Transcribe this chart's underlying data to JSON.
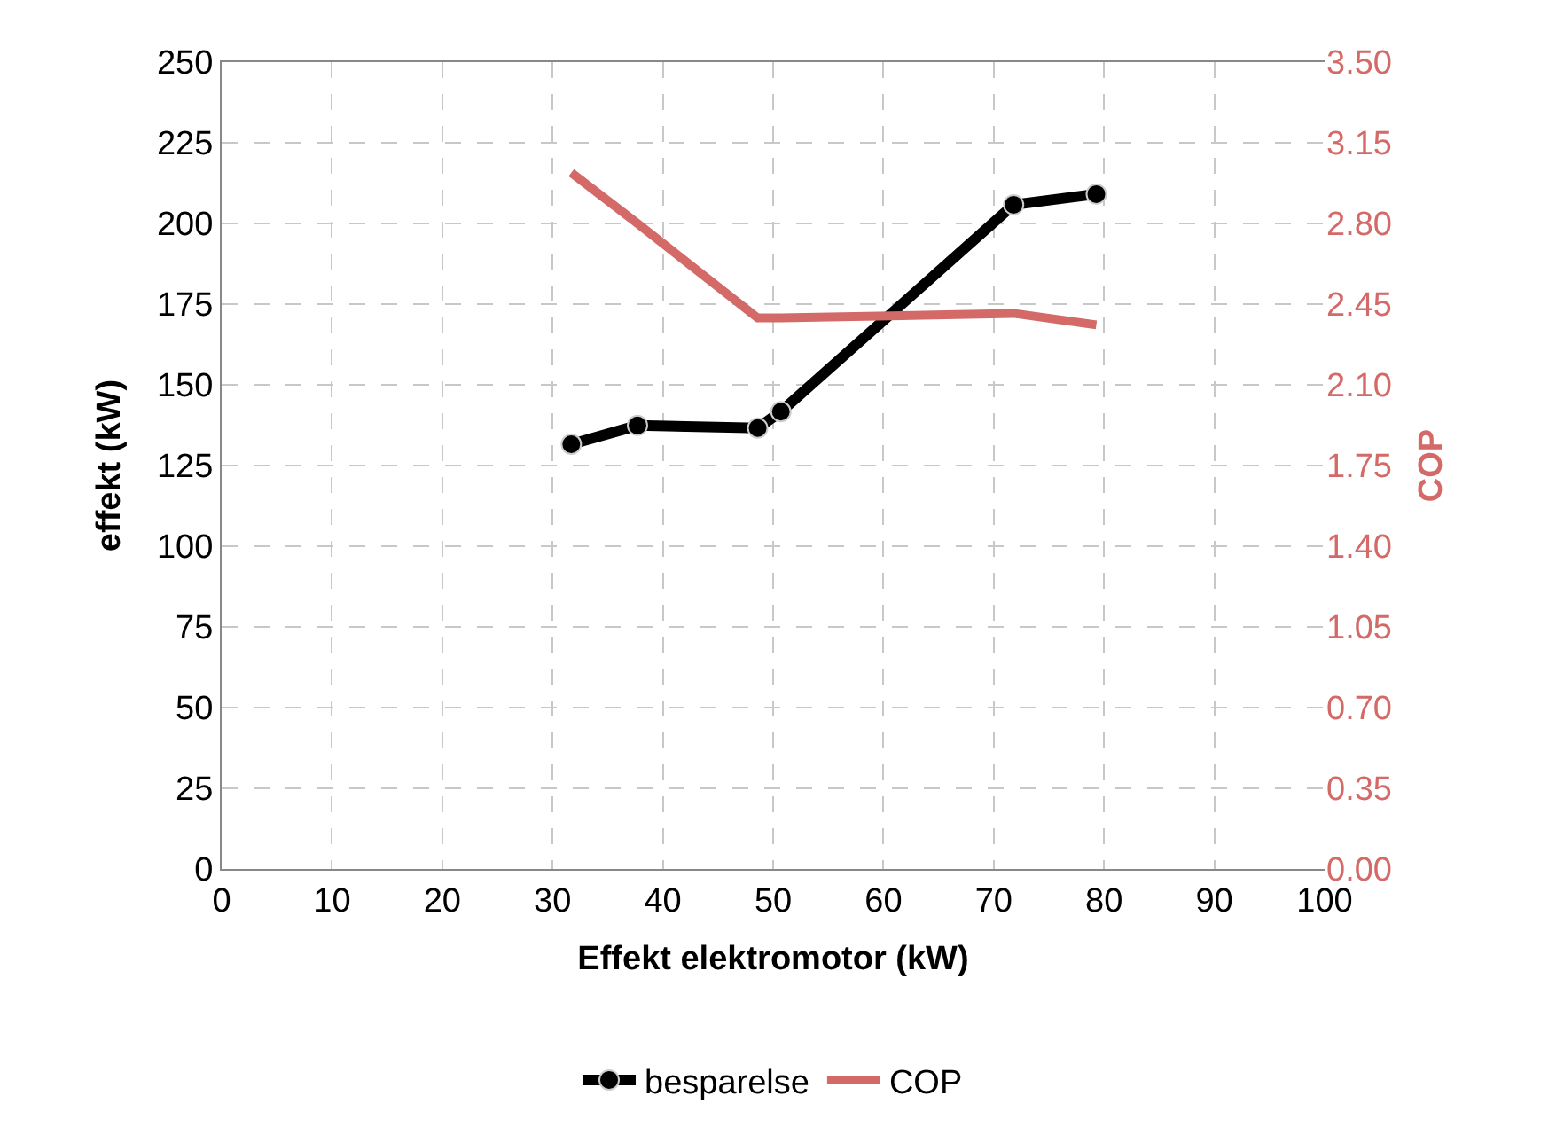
{
  "chart_data": {
    "type": "line",
    "xlabel": "Effekt elektromotor (kW)",
    "ylabel": "effekt (kW)",
    "y2label": "COP",
    "xlim": [
      0,
      100
    ],
    "xticks": [
      0,
      10,
      20,
      30,
      40,
      50,
      60,
      70,
      80,
      90,
      100
    ],
    "ylim": [
      0,
      250
    ],
    "yticks": [
      0,
      25,
      50,
      75,
      100,
      125,
      150,
      175,
      200,
      225,
      250
    ],
    "y2lim": [
      0,
      3.5
    ],
    "y2ticks": [
      {
        "value": 0,
        "label": "0.00"
      },
      {
        "value": 0.35,
        "label": "0.35"
      },
      {
        "value": 0.7,
        "label": "0.70"
      },
      {
        "value": 1.05,
        "label": "1.05"
      },
      {
        "value": 1.4,
        "label": "1.40"
      },
      {
        "value": 1.75,
        "label": "1.75"
      },
      {
        "value": 2.1,
        "label": "2.10"
      },
      {
        "value": 2.45,
        "label": "2.45"
      },
      {
        "value": 2.8,
        "label": "2.80"
      },
      {
        "value": 3.15,
        "label": "3.15"
      },
      {
        "value": 3.5,
        "label": "3.50"
      }
    ],
    "grid": true,
    "legend": "bottom",
    "series": [
      {
        "name": "besparelse",
        "color": "#000000",
        "marker": "circle",
        "x": [
          31.7,
          37.7,
          48.6,
          50.7,
          71.8,
          79.3
        ],
        "values": [
          131.6,
          137.4,
          136.6,
          141.7,
          205.8,
          209.1
        ]
      },
      {
        "name": "COP",
        "color": "#d46a68",
        "marker": "none",
        "axis": "y2",
        "x": [
          31.7,
          37.7,
          48.6,
          50.7,
          71.8,
          79.3
        ],
        "values": [
          3.02,
          2.8,
          2.39,
          2.39,
          2.41,
          2.36
        ]
      }
    ]
  }
}
